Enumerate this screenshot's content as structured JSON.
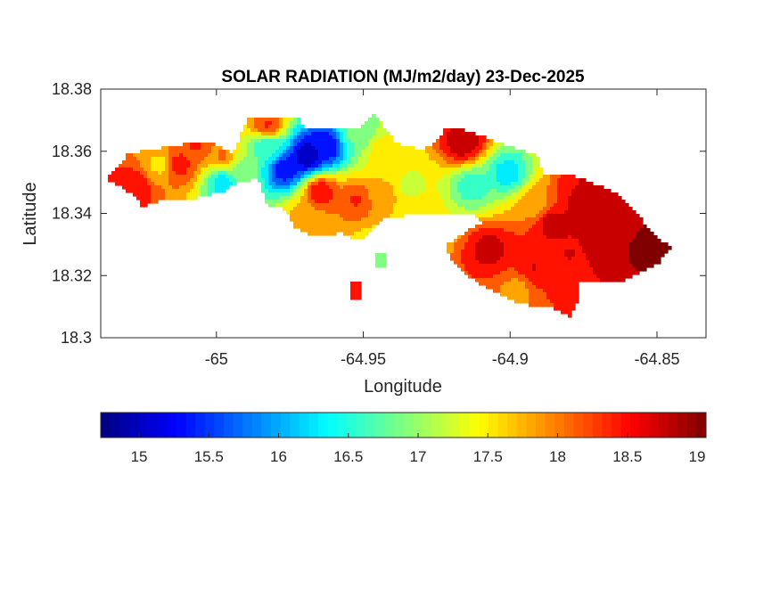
{
  "chart_data": {
    "type": "heatmap",
    "title": "SOLAR RADIATION (MJ/m2/day) 23-Dec-2025",
    "xlabel": "Longitude",
    "ylabel": "Latitude",
    "xlim": [
      -65.0394,
      -64.8333
    ],
    "ylim": [
      18.3,
      18.38
    ],
    "xticks": [
      -65,
      -64.95,
      -64.9,
      -64.85
    ],
    "xtick_labels": [
      "-65",
      "-64.95",
      "-64.9",
      "-64.85"
    ],
    "yticks": [
      18.3,
      18.32,
      18.34,
      18.36,
      18.38
    ],
    "ytick_labels": [
      "18.3",
      "18.32",
      "18.34",
      "18.36",
      "18.38"
    ],
    "colormap": "jet",
    "colorbar": {
      "location": "bottom",
      "clim": [
        14.725,
        19.064
      ],
      "ticks": [
        15,
        15.5,
        16,
        16.5,
        17,
        17.5,
        18,
        18.5,
        19
      ],
      "tick_labels": [
        "15",
        "15.5",
        "16",
        "16.5",
        "17",
        "17.5",
        "18",
        "18.5",
        "19"
      ]
    },
    "outline": [
      [
        -65.0379,
        18.3513
      ],
      [
        -65.0297,
        18.3594
      ],
      [
        -65.0039,
        18.3634
      ],
      [
        -64.9942,
        18.3594
      ],
      [
        -64.9894,
        18.3705
      ],
      [
        -64.9721,
        18.3705
      ],
      [
        -64.9691,
        18.3671
      ],
      [
        -64.9524,
        18.3671
      ],
      [
        -64.9464,
        18.372
      ],
      [
        -64.9388,
        18.3628
      ],
      [
        -64.9312,
        18.3605
      ],
      [
        -64.9267,
        18.3614
      ],
      [
        -64.9221,
        18.3671
      ],
      [
        -64.9161,
        18.3671
      ],
      [
        -64.9039,
        18.3628
      ],
      [
        -64.8903,
        18.3585
      ],
      [
        -64.8888,
        18.3528
      ],
      [
        -64.8797,
        18.3528
      ],
      [
        -64.8645,
        18.347
      ],
      [
        -64.8555,
        18.3384
      ],
      [
        -64.8494,
        18.3313
      ],
      [
        -64.8448,
        18.3295
      ],
      [
        -64.8494,
        18.3241
      ],
      [
        -64.8615,
        18.3184
      ],
      [
        -64.8767,
        18.3184
      ],
      [
        -64.8767,
        18.3126
      ],
      [
        -64.8797,
        18.3069
      ],
      [
        -64.8858,
        18.3097
      ],
      [
        -64.8979,
        18.3112
      ],
      [
        -64.9039,
        18.3141
      ],
      [
        -64.9145,
        18.3198
      ],
      [
        -64.9206,
        18.3255
      ],
      [
        -64.9221,
        18.3298
      ],
      [
        -64.9161,
        18.3335
      ],
      [
        -64.91,
        18.337
      ],
      [
        -64.913,
        18.3399
      ],
      [
        -64.9312,
        18.3399
      ],
      [
        -64.9433,
        18.3384
      ],
      [
        -64.9494,
        18.3327
      ],
      [
        -64.9524,
        18.3313
      ],
      [
        -64.9585,
        18.3341
      ],
      [
        -64.9615,
        18.3327
      ],
      [
        -64.9691,
        18.3335
      ],
      [
        -64.9736,
        18.3356
      ],
      [
        -64.9767,
        18.3413
      ],
      [
        -64.9827,
        18.3427
      ],
      [
        -64.9858,
        18.3513
      ],
      [
        -64.9933,
        18.3499
      ],
      [
        -64.9979,
        18.347
      ],
      [
        -65.01,
        18.3442
      ],
      [
        -65.0191,
        18.3442
      ],
      [
        -65.0252,
        18.3422
      ],
      [
        -65.0282,
        18.3462
      ]
    ],
    "islets": [
      [
        [
          -64.9539,
          18.3184
        ],
        [
          -64.9509,
          18.3184
        ],
        [
          -64.9509,
          18.3126
        ],
        [
          -64.9539,
          18.3126
        ]
      ],
      [
        [
          -64.9464,
          18.327
        ],
        [
          -64.9427,
          18.327
        ],
        [
          -64.9427,
          18.3227
        ],
        [
          -64.9464,
          18.3227
        ]
      ]
    ],
    "samples": [
      [
        -64.9691,
        18.3585,
        14.9
      ],
      [
        -64.9767,
        18.3542,
        15.3
      ],
      [
        -64.963,
        18.3614,
        15.2
      ],
      [
        -64.9827,
        18.3614,
        16.5
      ],
      [
        -64.9979,
        18.3499,
        16.3
      ],
      [
        -64.9918,
        18.3542,
        17.0
      ],
      [
        -64.9009,
        18.3528,
        16.3
      ],
      [
        -64.913,
        18.3485,
        16.6
      ],
      [
        -65.0191,
        18.3556,
        17.6
      ],
      [
        -64.9433,
        18.3599,
        17.5
      ],
      [
        -64.9342,
        18.3485,
        17.3
      ],
      [
        -65.0282,
        18.3485,
        18.5
      ],
      [
        -65.013,
        18.3556,
        18.4
      ],
      [
        -65.007,
        18.3622,
        18.3
      ],
      [
        -64.9161,
        18.3628,
        18.8
      ],
      [
        -64.8858,
        18.337,
        18.7
      ],
      [
        -64.8615,
        18.3341,
        18.9
      ],
      [
        -64.8524,
        18.3284,
        19.0
      ],
      [
        -64.8918,
        18.3227,
        18.6
      ],
      [
        -64.907,
        18.3284,
        18.7
      ],
      [
        -64.8979,
        18.3155,
        17.9
      ],
      [
        -64.9524,
        18.3442,
        18.3
      ],
      [
        -64.9645,
        18.347,
        18.5
      ],
      [
        -64.8736,
        18.3427,
        18.8
      ],
      [
        -64.8797,
        18.327,
        18.6
      ],
      [
        -64.9312,
        18.3399,
        17.5
      ],
      [
        -64.8918,
        18.3427,
        17.8
      ],
      [
        -64.9433,
        18.3456,
        17.8
      ],
      [
        -64.9706,
        18.3384,
        17.8
      ],
      [
        -64.9524,
        18.3657,
        16.8
      ],
      [
        -64.9827,
        18.3685,
        18.3
      ],
      [
        -64.8736,
        18.3513,
        18.6
      ],
      [
        -64.9979,
        18.3585,
        18.0
      ],
      [
        -64.9495,
        18.316,
        18.4
      ],
      [
        -64.9445,
        18.325,
        16.8
      ]
    ]
  }
}
